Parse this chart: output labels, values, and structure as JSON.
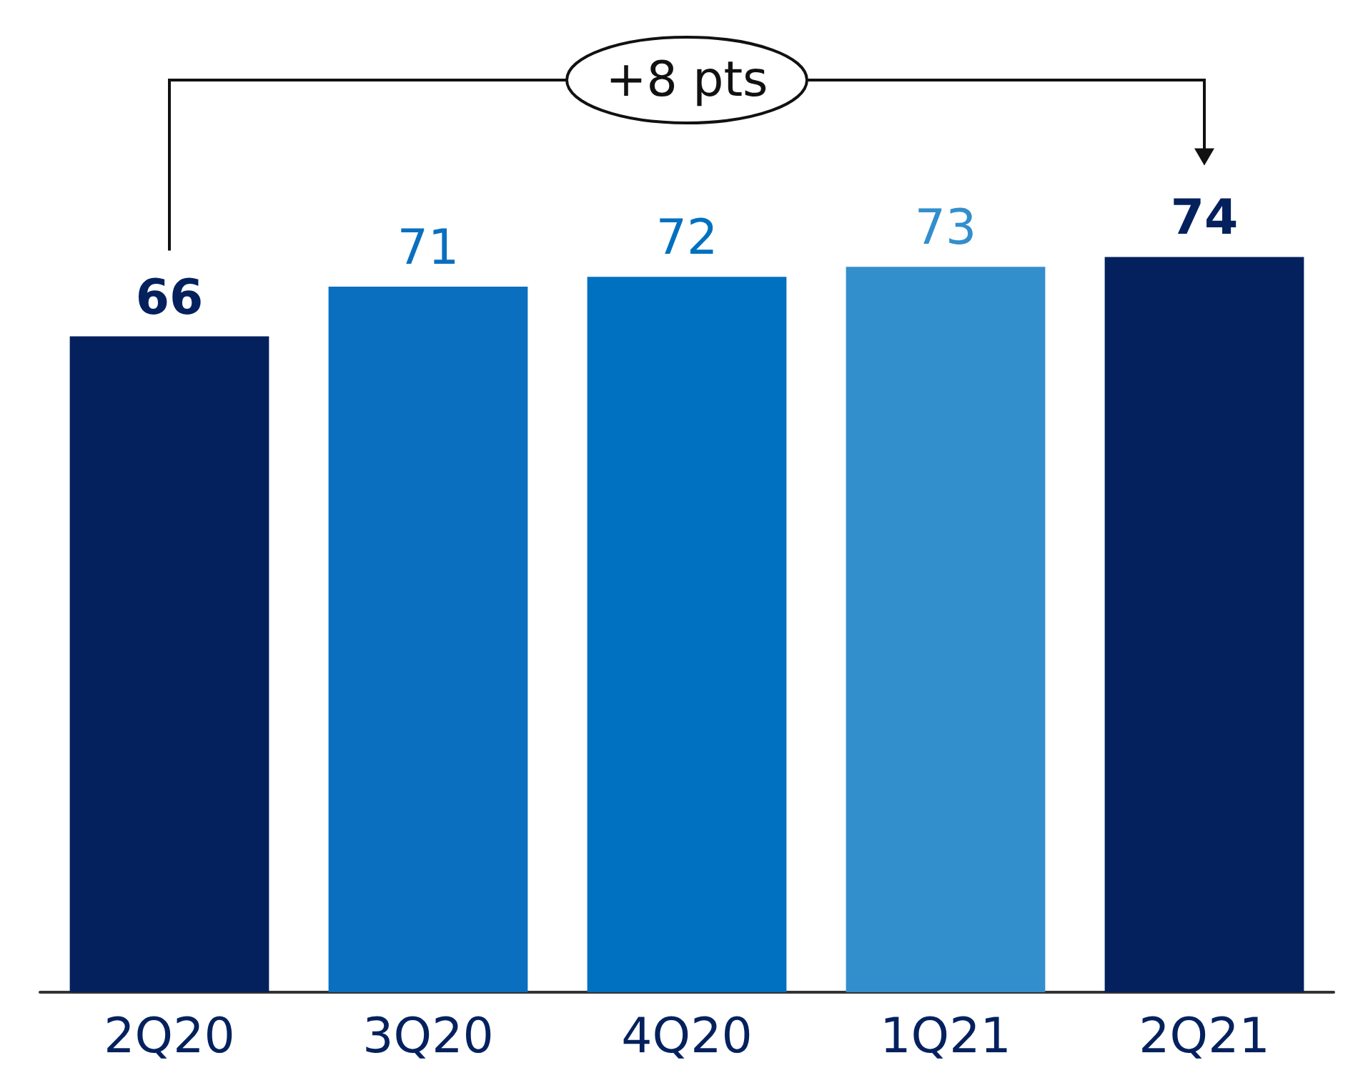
{
  "chart_data": {
    "type": "bar",
    "categories": [
      "2Q20",
      "3Q20",
      "4Q20",
      "1Q21",
      "2Q21"
    ],
    "values": [
      66,
      71,
      72,
      73,
      74
    ],
    "colors": [
      "#04215e",
      "#0a6fbf",
      "#0070c0",
      "#338ecc",
      "#04215e"
    ],
    "tick_labels": "x",
    "data_labels": true,
    "grid": false,
    "annotations": [
      "+8 pts"
    ]
  }
}
